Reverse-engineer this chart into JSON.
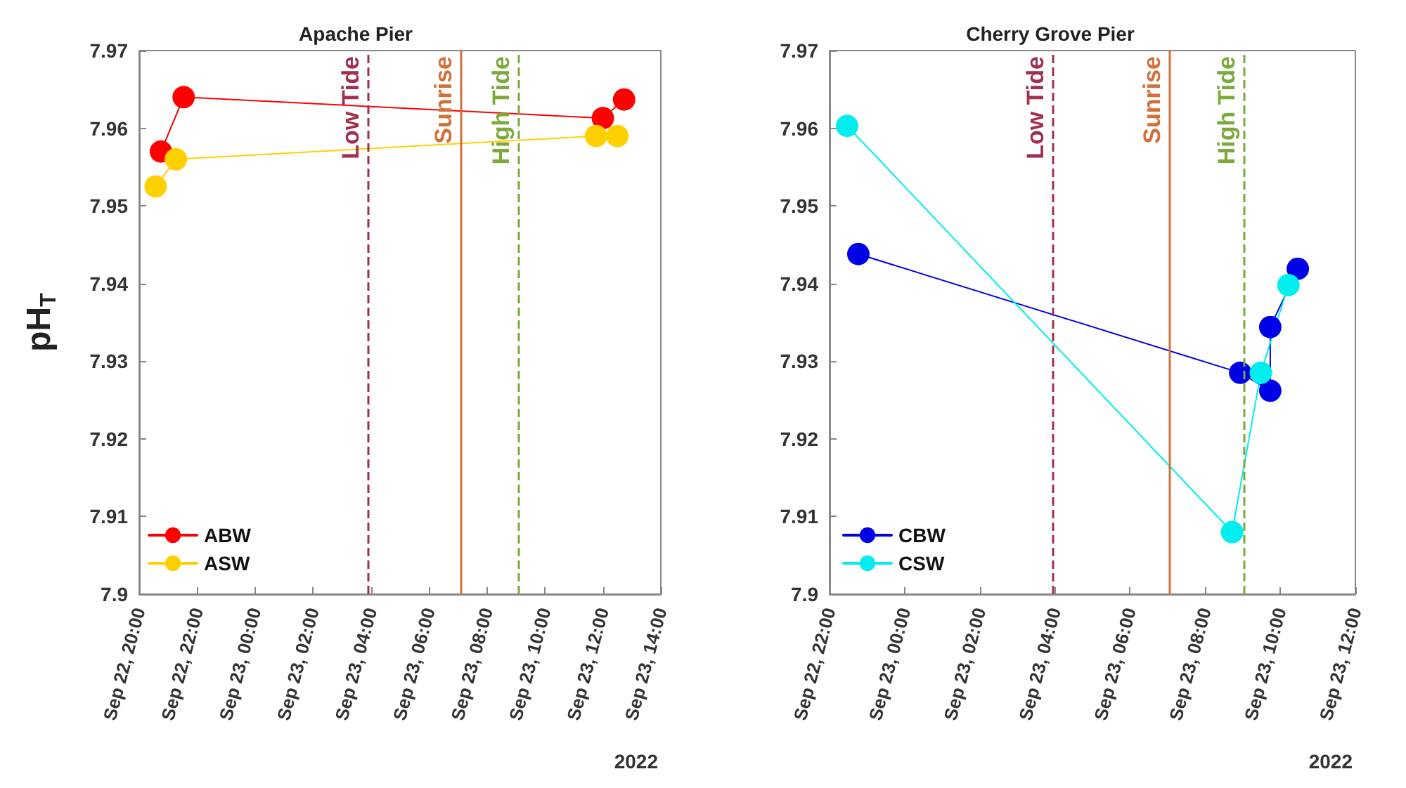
{
  "chart_data": [
    {
      "type": "line",
      "title": "Apache Pier",
      "ylabel": "pH$_{T}$",
      "marker": "circle",
      "line_style": "solid",
      "grid": false,
      "legend": "bottom left",
      "xlim": [
        "2022-09-22T20:00",
        "2022-09-23T14:00"
      ],
      "xticks": [
        {
          "value": "2022-09-22T20:00",
          "label": "Sep 22, 20:00"
        },
        {
          "value": "2022-09-22T22:00",
          "label": "Sep 22, 22:00"
        },
        {
          "value": "2022-09-23T00:00",
          "label": "Sep 23, 00:00"
        },
        {
          "value": "2022-09-23T02:00",
          "label": "Sep 23, 02:00"
        },
        {
          "value": "2022-09-23T04:00",
          "label": "Sep 23, 04:00"
        },
        {
          "value": "2022-09-23T06:00",
          "label": "Sep 23, 06:00"
        },
        {
          "value": "2022-09-23T08:00",
          "label": "Sep 23, 08:00"
        },
        {
          "value": "2022-09-23T10:00",
          "label": "Sep 23, 10:00"
        },
        {
          "value": "2022-09-23T12:00",
          "label": "Sep 23, 12:00"
        },
        {
          "value": "2022-09-23T14:00",
          "label": "Sep 23, 14:00"
        }
      ],
      "ylim": [
        7.9,
        7.97
      ],
      "yticks": [
        7.9,
        7.91,
        7.92,
        7.93,
        7.94,
        7.95,
        7.96,
        7.97
      ],
      "series": [
        {
          "name": "ABW",
          "color": "#ff0000",
          "x": [
            "2022-09-22T20:45",
            "2022-09-22T21:32",
            "2022-09-23T12:00",
            "2022-09-23T12:44"
          ],
          "values": [
            7.957,
            7.964,
            7.9613,
            7.9637
          ]
        },
        {
          "name": "ASW",
          "color": "#ffd000",
          "x": [
            "2022-09-22T20:34",
            "2022-09-22T21:16",
            "2022-09-23T11:46",
            "2022-09-23T12:30"
          ],
          "values": [
            7.9525,
            7.956,
            7.959,
            7.959
          ]
        }
      ],
      "ref_lines": [
        {
          "axis": "x",
          "value": "2022-09-23T03:54",
          "label": "Low Tide",
          "color": "#a0304f",
          "line_style": "dashed"
        },
        {
          "axis": "x",
          "value": "2022-09-23T07:06",
          "label": "Sunrise",
          "color": "#d2703a",
          "line_style": "solid"
        },
        {
          "axis": "x",
          "value": "2022-09-23T09:06",
          "label": "High Tide",
          "color": "#7aaa3a",
          "line_style": "dashed"
        }
      ],
      "annotations": [
        "2022"
      ]
    },
    {
      "type": "line",
      "title": "Cherry Grove Pier",
      "marker": "circle",
      "line_style": "solid",
      "grid": false,
      "legend": "bottom left",
      "xlim": [
        "2022-09-22T22:00",
        "2022-09-23T12:00"
      ],
      "xticks": [
        {
          "value": "2022-09-22T22:00",
          "label": "Sep 22, 22:00"
        },
        {
          "value": "2022-09-23T00:00",
          "label": "Sep 23, 00:00"
        },
        {
          "value": "2022-09-23T02:00",
          "label": "Sep 23, 02:00"
        },
        {
          "value": "2022-09-23T04:00",
          "label": "Sep 23, 04:00"
        },
        {
          "value": "2022-09-23T06:00",
          "label": "Sep 23, 06:00"
        },
        {
          "value": "2022-09-23T08:00",
          "label": "Sep 23, 08:00"
        },
        {
          "value": "2022-09-23T10:00",
          "label": "Sep 23, 10:00"
        },
        {
          "value": "2022-09-23T12:00",
          "label": "Sep 23, 12:00"
        }
      ],
      "ylim": [
        7.9,
        7.97
      ],
      "yticks": [
        7.9,
        7.91,
        7.92,
        7.93,
        7.94,
        7.95,
        7.96,
        7.97
      ],
      "series": [
        {
          "name": "CBW",
          "color": "#0000e6",
          "x": [
            "2022-09-22T22:46",
            "2022-09-23T08:56",
            "2022-09-23T09:44",
            "2022-09-23T09:44",
            "2022-09-23T10:28"
          ],
          "values": [
            7.9438,
            7.9285,
            7.9262,
            7.9344,
            7.9419
          ]
        },
        {
          "name": "CSW",
          "color": "#00eeee",
          "x": [
            "2022-09-22T22:28",
            "2022-09-23T08:43",
            "2022-09-23T09:29",
            "2022-09-23T10:13"
          ],
          "values": [
            7.9603,
            7.908,
            7.9285,
            7.9398
          ]
        }
      ],
      "ref_lines": [
        {
          "axis": "x",
          "value": "2022-09-23T03:57",
          "label": "Low Tide",
          "color": "#a0304f",
          "line_style": "dashed"
        },
        {
          "axis": "x",
          "value": "2022-09-23T07:04",
          "label": "Sunrise",
          "color": "#d2703a",
          "line_style": "solid"
        },
        {
          "axis": "x",
          "value": "2022-09-23T09:03",
          "label": "High Tide",
          "color": "#7aaa3a",
          "line_style": "dashed"
        }
      ],
      "annotations": [
        "2022"
      ]
    }
  ]
}
